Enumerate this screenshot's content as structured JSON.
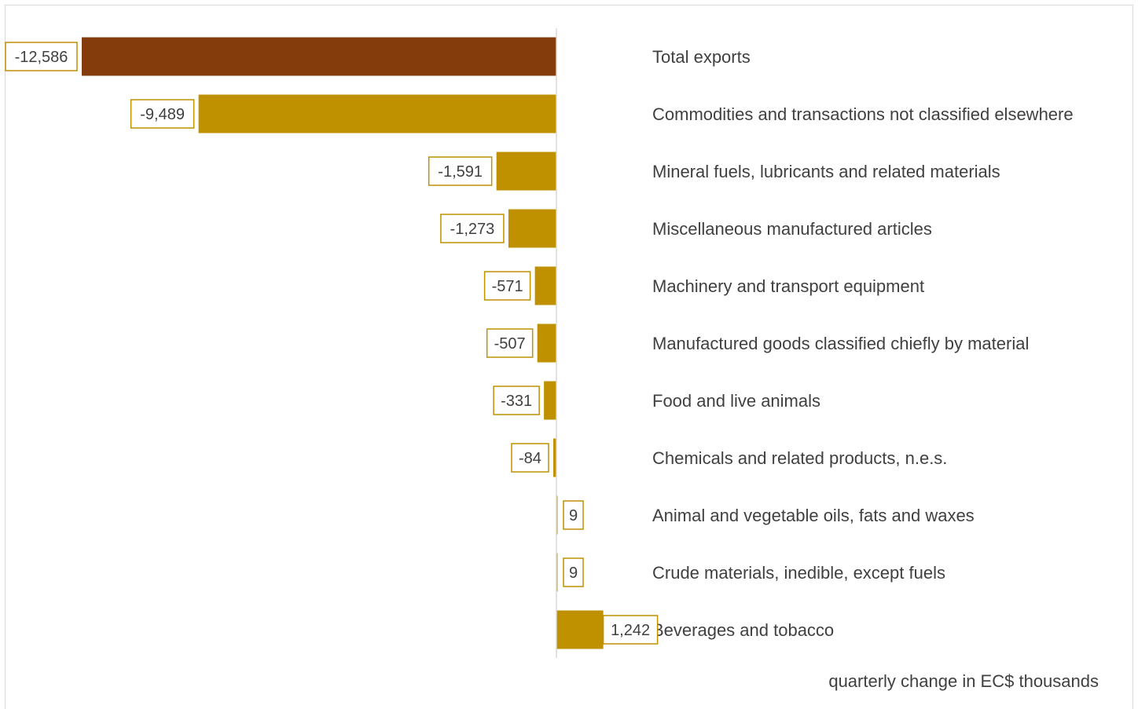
{
  "chart_data": {
    "type": "bar",
    "orientation": "horizontal",
    "categories": [
      "Total exports",
      "Commodities and transactions not classified elsewhere",
      "Mineral fuels, lubricants and related materials",
      "Miscellaneous manufactured articles",
      "Machinery and transport equipment",
      "Manufactured goods classified chiefly by material",
      "Food and live animals",
      "Chemicals and related products, n.e.s.",
      "Animal and vegetable oils, fats and waxes",
      "Crude materials, inedible, except fuels",
      "Beverages and tobacco"
    ],
    "values": [
      -12586,
      -9489,
      -1591,
      -1273,
      -571,
      -507,
      -331,
      -84,
      9,
      9,
      1242
    ],
    "data_labels": [
      "-12,586",
      "-9,489",
      "-1,591",
      "-1,273",
      "-571",
      "-507",
      "-331",
      "-84",
      "9",
      "9",
      "1,242"
    ],
    "unit_note": "quarterly change in EC$ thousands",
    "colors": {
      "total_bar": "#843C0C",
      "bars": "#BF9000",
      "label_border": "#BF9000",
      "axis": "#d9d9d9",
      "text": "#404040"
    },
    "grid": false,
    "legend": "none"
  }
}
